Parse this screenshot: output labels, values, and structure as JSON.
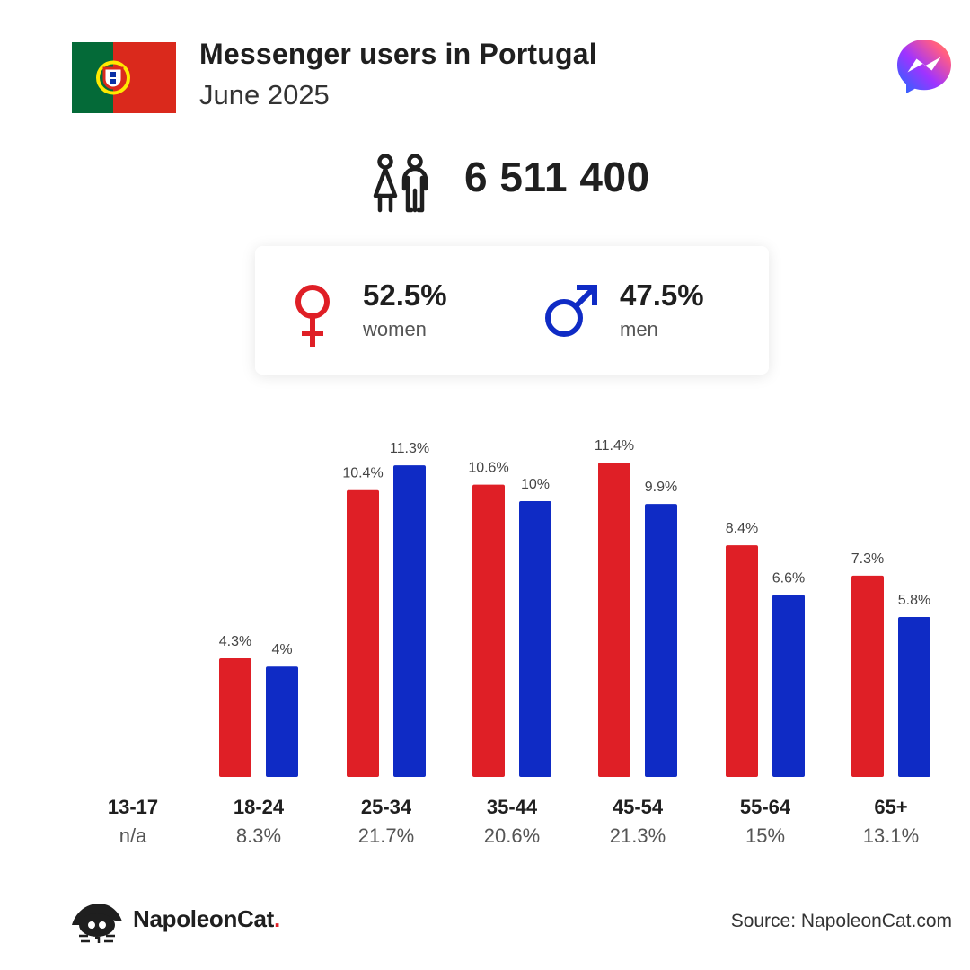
{
  "header": {
    "title": "Messenger users in Portugal",
    "subtitle": "June 2025"
  },
  "total": {
    "value": "6 511 400"
  },
  "gender": {
    "women": {
      "pct": "52.5%",
      "label": "women"
    },
    "men": {
      "pct": "47.5%",
      "label": "men"
    }
  },
  "colors": {
    "women": "#df1f26",
    "men": "#0f2bc5",
    "text": "#1f1f1f",
    "muted": "#555555"
  },
  "chart_data": {
    "type": "bar",
    "categories": [
      "13-17",
      "18-24",
      "25-34",
      "35-44",
      "45-54",
      "55-64",
      "65+"
    ],
    "group_totals": [
      "n/a",
      "8.3%",
      "21.7%",
      "20.6%",
      "21.3%",
      "15%",
      "13.1%"
    ],
    "series": [
      {
        "key": "women",
        "values": [
          null,
          4.3,
          10.4,
          10.6,
          11.4,
          8.4,
          7.3
        ],
        "labels": [
          "",
          "4.3%",
          "10.4%",
          "10.6%",
          "11.4%",
          "8.4%",
          "7.3%"
        ]
      },
      {
        "key": "men",
        "values": [
          null,
          4.0,
          11.3,
          10.0,
          9.9,
          6.6,
          5.8
        ],
        "labels": [
          "",
          "4%",
          "11.3%",
          "10%",
          "9.9%",
          "6.6%",
          "5.8%"
        ]
      }
    ],
    "grid": false
  },
  "footer": {
    "brand_name": "NapoleonCat",
    "brand_dot": ".",
    "source": "Source: NapoleonCat.com"
  }
}
